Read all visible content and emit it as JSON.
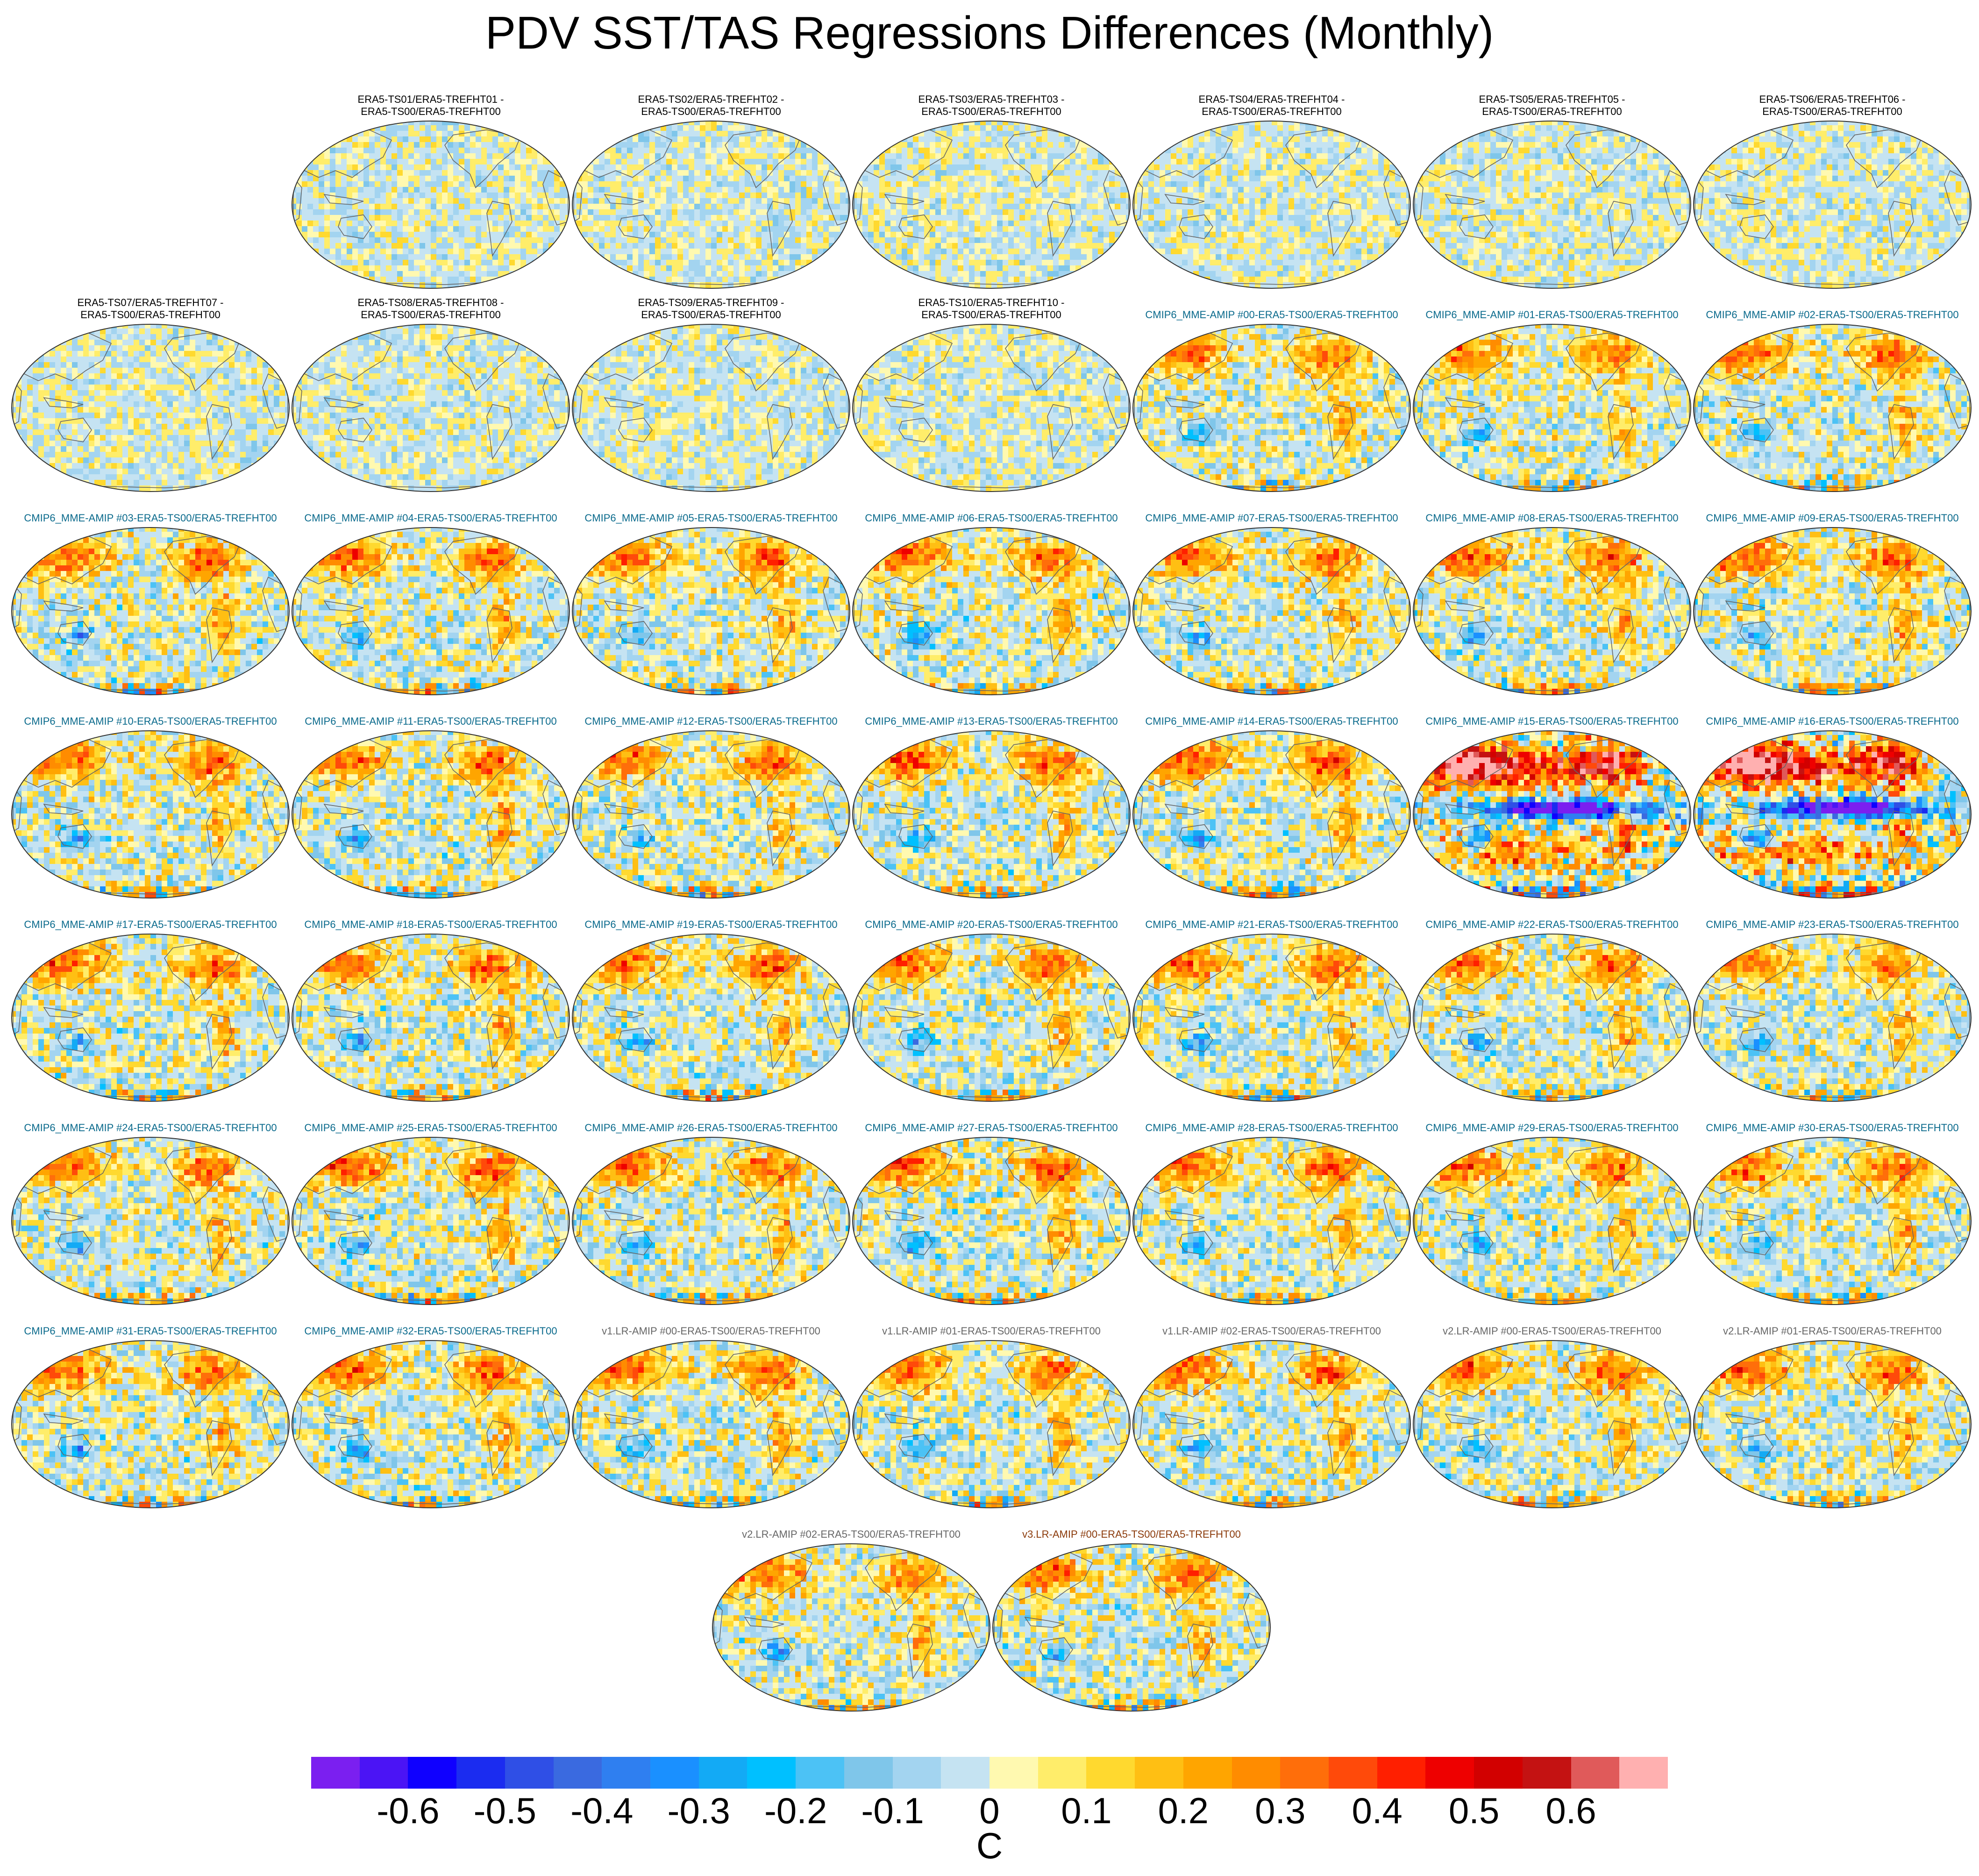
{
  "title": "PDV SST/TAS Regressions Differences (Monthly)",
  "panels": [
    {
      "row": 0,
      "col": 1,
      "kind": "era5",
      "line1": "ERA5-TS01/ERA5-TREFHT01 -",
      "line2": "ERA5-TS00/ERA5-TREFHT00",
      "strength": 0.15
    },
    {
      "row": 0,
      "col": 2,
      "kind": "era5",
      "line1": "ERA5-TS02/ERA5-TREFHT02 -",
      "line2": "ERA5-TS00/ERA5-TREFHT00",
      "strength": 0.15
    },
    {
      "row": 0,
      "col": 3,
      "kind": "era5",
      "line1": "ERA5-TS03/ERA5-TREFHT03 -",
      "line2": "ERA5-TS00/ERA5-TREFHT00",
      "strength": 0.15
    },
    {
      "row": 0,
      "col": 4,
      "kind": "era5",
      "line1": "ERA5-TS04/ERA5-TREFHT04 -",
      "line2": "ERA5-TS00/ERA5-TREFHT00",
      "strength": 0.15
    },
    {
      "row": 0,
      "col": 5,
      "kind": "era5",
      "line1": "ERA5-TS05/ERA5-TREFHT05 -",
      "line2": "ERA5-TS00/ERA5-TREFHT00",
      "strength": 0.15
    },
    {
      "row": 0,
      "col": 6,
      "kind": "era5",
      "line1": "ERA5-TS06/ERA5-TREFHT06 -",
      "line2": "ERA5-TS00/ERA5-TREFHT00",
      "strength": 0.15
    },
    {
      "row": 1,
      "col": 0,
      "kind": "era5",
      "line1": "ERA5-TS07/ERA5-TREFHT07 -",
      "line2": "ERA5-TS00/ERA5-TREFHT00",
      "strength": 0.15
    },
    {
      "row": 1,
      "col": 1,
      "kind": "era5",
      "line1": "ERA5-TS08/ERA5-TREFHT08 -",
      "line2": "ERA5-TS00/ERA5-TREFHT00",
      "strength": 0.15
    },
    {
      "row": 1,
      "col": 2,
      "kind": "era5",
      "line1": "ERA5-TS09/ERA5-TREFHT09 -",
      "line2": "ERA5-TS00/ERA5-TREFHT00",
      "strength": 0.15
    },
    {
      "row": 1,
      "col": 3,
      "kind": "era5",
      "line1": "ERA5-TS10/ERA5-TREFHT10 -",
      "line2": "ERA5-TS00/ERA5-TREFHT00",
      "strength": 0.15
    },
    {
      "row": 1,
      "col": 4,
      "kind": "cmip6",
      "line1": "CMIP6_MME-AMIP  #00-ERA5-TS00/ERA5-TREFHT00",
      "line2": "",
      "strength": 0.55
    },
    {
      "row": 1,
      "col": 5,
      "kind": "cmip6",
      "line1": "CMIP6_MME-AMIP  #01-ERA5-TS00/ERA5-TREFHT00",
      "line2": "",
      "strength": 0.55
    },
    {
      "row": 1,
      "col": 6,
      "kind": "cmip6",
      "line1": "CMIP6_MME-AMIP  #02-ERA5-TS00/ERA5-TREFHT00",
      "line2": "",
      "strength": 0.6
    },
    {
      "row": 2,
      "col": 0,
      "kind": "cmip6",
      "line1": "CMIP6_MME-AMIP  #03-ERA5-TS00/ERA5-TREFHT00",
      "line2": "",
      "strength": 0.6
    },
    {
      "row": 2,
      "col": 1,
      "kind": "cmip6",
      "line1": "CMIP6_MME-AMIP  #04-ERA5-TS00/ERA5-TREFHT00",
      "line2": "",
      "strength": 0.6
    },
    {
      "row": 2,
      "col": 2,
      "kind": "cmip6",
      "line1": "CMIP6_MME-AMIP  #05-ERA5-TS00/ERA5-TREFHT00",
      "line2": "",
      "strength": 0.6
    },
    {
      "row": 2,
      "col": 3,
      "kind": "cmip6",
      "line1": "CMIP6_MME-AMIP  #06-ERA5-TS00/ERA5-TREFHT00",
      "line2": "",
      "strength": 0.6
    },
    {
      "row": 2,
      "col": 4,
      "kind": "cmip6",
      "line1": "CMIP6_MME-AMIP  #07-ERA5-TS00/ERA5-TREFHT00",
      "line2": "",
      "strength": 0.6
    },
    {
      "row": 2,
      "col": 5,
      "kind": "cmip6",
      "line1": "CMIP6_MME-AMIP  #08-ERA5-TS00/ERA5-TREFHT00",
      "line2": "",
      "strength": 0.65
    },
    {
      "row": 2,
      "col": 6,
      "kind": "cmip6",
      "line1": "CMIP6_MME-AMIP  #09-ERA5-TS00/ERA5-TREFHT00",
      "line2": "",
      "strength": 0.65
    },
    {
      "row": 3,
      "col": 0,
      "kind": "cmip6",
      "line1": "CMIP6_MME-AMIP  #10-ERA5-TS00/ERA5-TREFHT00",
      "line2": "",
      "strength": 0.6
    },
    {
      "row": 3,
      "col": 1,
      "kind": "cmip6",
      "line1": "CMIP6_MME-AMIP  #11-ERA5-TS00/ERA5-TREFHT00",
      "line2": "",
      "strength": 0.6
    },
    {
      "row": 3,
      "col": 2,
      "kind": "cmip6",
      "line1": "CMIP6_MME-AMIP  #12-ERA5-TS00/ERA5-TREFHT00",
      "line2": "",
      "strength": 0.6
    },
    {
      "row": 3,
      "col": 3,
      "kind": "cmip6",
      "line1": "CMIP6_MME-AMIP  #13-ERA5-TS00/ERA5-TREFHT00",
      "line2": "",
      "strength": 0.6
    },
    {
      "row": 3,
      "col": 4,
      "kind": "cmip6",
      "line1": "CMIP6_MME-AMIP  #14-ERA5-TS00/ERA5-TREFHT00",
      "line2": "",
      "strength": 0.65
    },
    {
      "row": 3,
      "col": 5,
      "kind": "cmip6",
      "line1": "CMIP6_MME-AMIP  #15-ERA5-TS00/ERA5-TREFHT00",
      "line2": "",
      "strength": 1.0,
      "enso": true
    },
    {
      "row": 3,
      "col": 6,
      "kind": "cmip6",
      "line1": "CMIP6_MME-AMIP  #16-ERA5-TS00/ERA5-TREFHT00",
      "line2": "",
      "strength": 1.0,
      "enso": true
    },
    {
      "row": 4,
      "col": 0,
      "kind": "cmip6",
      "line1": "CMIP6_MME-AMIP  #17-ERA5-TS00/ERA5-TREFHT00",
      "line2": "",
      "strength": 0.6
    },
    {
      "row": 4,
      "col": 1,
      "kind": "cmip6",
      "line1": "CMIP6_MME-AMIP  #18-ERA5-TS00/ERA5-TREFHT00",
      "line2": "",
      "strength": 0.6
    },
    {
      "row": 4,
      "col": 2,
      "kind": "cmip6",
      "line1": "CMIP6_MME-AMIP  #19-ERA5-TS00/ERA5-TREFHT00",
      "line2": "",
      "strength": 0.6
    },
    {
      "row": 4,
      "col": 3,
      "kind": "cmip6",
      "line1": "CMIP6_MME-AMIP  #20-ERA5-TS00/ERA5-TREFHT00",
      "line2": "",
      "strength": 0.6
    },
    {
      "row": 4,
      "col": 4,
      "kind": "cmip6",
      "line1": "CMIP6_MME-AMIP  #21-ERA5-TS00/ERA5-TREFHT00",
      "line2": "",
      "strength": 0.6
    },
    {
      "row": 4,
      "col": 5,
      "kind": "cmip6",
      "line1": "CMIP6_MME-AMIP  #22-ERA5-TS00/ERA5-TREFHT00",
      "line2": "",
      "strength": 0.6
    },
    {
      "row": 4,
      "col": 6,
      "kind": "cmip6",
      "line1": "CMIP6_MME-AMIP  #23-ERA5-TS00/ERA5-TREFHT00",
      "line2": "",
      "strength": 0.55
    },
    {
      "row": 5,
      "col": 0,
      "kind": "cmip6",
      "line1": "CMIP6_MME-AMIP  #24-ERA5-TS00/ERA5-TREFHT00",
      "line2": "",
      "strength": 0.6
    },
    {
      "row": 5,
      "col": 1,
      "kind": "cmip6",
      "line1": "CMIP6_MME-AMIP  #25-ERA5-TS00/ERA5-TREFHT00",
      "line2": "",
      "strength": 0.65
    },
    {
      "row": 5,
      "col": 2,
      "kind": "cmip6",
      "line1": "CMIP6_MME-AMIP  #26-ERA5-TS00/ERA5-TREFHT00",
      "line2": "",
      "strength": 0.6
    },
    {
      "row": 5,
      "col": 3,
      "kind": "cmip6",
      "line1": "CMIP6_MME-AMIP  #27-ERA5-TS00/ERA5-TREFHT00",
      "line2": "",
      "strength": 0.65
    },
    {
      "row": 5,
      "col": 4,
      "kind": "cmip6",
      "line1": "CMIP6_MME-AMIP  #28-ERA5-TS00/ERA5-TREFHT00",
      "line2": "",
      "strength": 0.6
    },
    {
      "row": 5,
      "col": 5,
      "kind": "cmip6",
      "line1": "CMIP6_MME-AMIP  #29-ERA5-TS00/ERA5-TREFHT00",
      "line2": "",
      "strength": 0.6
    },
    {
      "row": 5,
      "col": 6,
      "kind": "cmip6",
      "line1": "CMIP6_MME-AMIP  #30-ERA5-TS00/ERA5-TREFHT00",
      "line2": "",
      "strength": 0.6
    },
    {
      "row": 6,
      "col": 0,
      "kind": "cmip6",
      "line1": "CMIP6_MME-AMIP  #31-ERA5-TS00/ERA5-TREFHT00",
      "line2": "",
      "strength": 0.6
    },
    {
      "row": 6,
      "col": 1,
      "kind": "cmip6",
      "line1": "CMIP6_MME-AMIP  #32-ERA5-TS00/ERA5-TREFHT00",
      "line2": "",
      "strength": 0.6
    },
    {
      "row": 6,
      "col": 2,
      "kind": "v1",
      "line1": "v1.LR-AMIP  #00-ERA5-TS00/ERA5-TREFHT00",
      "line2": "",
      "strength": 0.6
    },
    {
      "row": 6,
      "col": 3,
      "kind": "v1",
      "line1": "v1.LR-AMIP  #01-ERA5-TS00/ERA5-TREFHT00",
      "line2": "",
      "strength": 0.6
    },
    {
      "row": 6,
      "col": 4,
      "kind": "v1",
      "line1": "v1.LR-AMIP  #02-ERA5-TS00/ERA5-TREFHT00",
      "line2": "",
      "strength": 0.6
    },
    {
      "row": 6,
      "col": 5,
      "kind": "v2",
      "line1": "v2.LR-AMIP  #00-ERA5-TS00/ERA5-TREFHT00",
      "line2": "",
      "strength": 0.6
    },
    {
      "row": 6,
      "col": 6,
      "kind": "v2",
      "line1": "v2.LR-AMIP  #01-ERA5-TS00/ERA5-TREFHT00",
      "line2": "",
      "strength": 0.6
    },
    {
      "row": 7,
      "col": 2.5,
      "kind": "v2",
      "line1": "v2.LR-AMIP  #02-ERA5-TS00/ERA5-TREFHT00",
      "line2": "",
      "strength": 0.6
    },
    {
      "row": 7,
      "col": 3.5,
      "kind": "v3",
      "line1": "v3.LR-AMIP  #00-ERA5-TS00/ERA5-TREFHT00",
      "line2": "",
      "strength": 0.6
    }
  ],
  "colorbar": {
    "colors": [
      "#7b1ff0",
      "#4b14f5",
      "#0f00ff",
      "#1b2cf0",
      "#2f4fe6",
      "#3a6ae0",
      "#2f7ff0",
      "#1a90ff",
      "#13aaf5",
      "#00c0ff",
      "#4cc2f5",
      "#7fc6ea",
      "#a3d4f0",
      "#c5e3f2",
      "#fff9b0",
      "#ffed6a",
      "#ffd92f",
      "#ffbf13",
      "#ffa500",
      "#ff8c00",
      "#ff6e0a",
      "#ff4a0a",
      "#ff1f00",
      "#ee0000",
      "#d20000",
      "#c41212",
      "#e05a5a",
      "#ffb0b0"
    ],
    "ticks": [
      "-0.6",
      "-0.5",
      "-0.4",
      "-0.3",
      "-0.2",
      "-0.1",
      "0",
      "0.1",
      "0.2",
      "0.3",
      "0.4",
      "0.5",
      "0.6"
    ],
    "units": "C"
  },
  "map_palette": {
    "ocean_light_blue": "#c5e3f2",
    "pale_yellow": "#fff9b0",
    "coast": "#666666"
  }
}
